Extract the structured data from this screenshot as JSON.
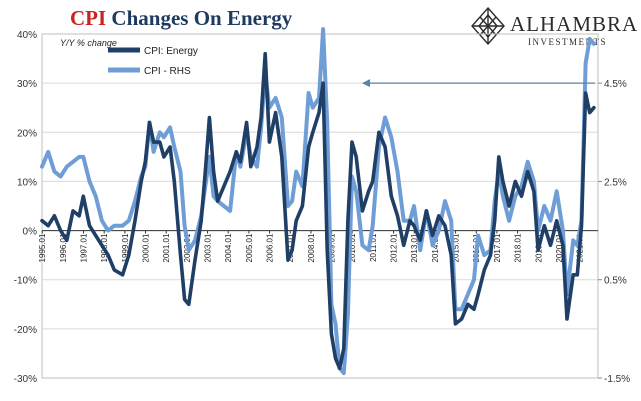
{
  "title": {
    "part1": "CPI",
    "part2": "Changes On Energy"
  },
  "logo": {
    "brand": "ALHAMBRA",
    "sub": "INVESTMENTS"
  },
  "chart_data": {
    "type": "line",
    "title": "CPI Changes On Energy",
    "left_axis_note": "Y/Y % change",
    "ylim_left": [
      -30,
      40
    ],
    "ylim_right": [
      -1.5,
      5.5
    ],
    "left_ticks": [
      "40%",
      "30%",
      "20%",
      "10%",
      "0%",
      "-10%",
      "-20%",
      "-30%"
    ],
    "right_ticks": [
      "4.5%",
      "2.5%",
      "0.5%",
      "-1.5%"
    ],
    "x_labels": [
      "1995.01",
      "1996.01",
      "1997.01",
      "1998.01",
      "1999.01",
      "2000.01",
      "2001.01",
      "2002.01",
      "2003.01",
      "2004.01",
      "2005.01",
      "2006.01",
      "2007.01",
      "2008.01",
      "2009.01",
      "2010.01",
      "2011.01",
      "2012.01",
      "2013.01",
      "2014.01",
      "2015.01",
      "2016.01",
      "2017.01",
      "2018.01",
      "2019.01",
      "2020.01",
      "2021.01"
    ],
    "grid": "horizontal",
    "legend_placement": "top-left",
    "annotation": "arrow pointing left at 4.5%",
    "series": [
      {
        "name": "CPI: Energy",
        "axis": "left",
        "color": "#1f3f66",
        "points": [
          [
            1995.0,
            2
          ],
          [
            1995.3,
            1
          ],
          [
            1995.6,
            3
          ],
          [
            1995.9,
            0
          ],
          [
            1996.2,
            -2
          ],
          [
            1996.5,
            4
          ],
          [
            1996.8,
            3
          ],
          [
            1997.0,
            7
          ],
          [
            1997.3,
            1
          ],
          [
            1997.6,
            -1
          ],
          [
            1997.9,
            -3
          ],
          [
            1998.2,
            -5
          ],
          [
            1998.5,
            -8
          ],
          [
            1998.9,
            -9
          ],
          [
            1999.2,
            -5
          ],
          [
            1999.5,
            2
          ],
          [
            1999.8,
            10
          ],
          [
            2000.0,
            14
          ],
          [
            2000.2,
            22
          ],
          [
            2000.4,
            18
          ],
          [
            2000.7,
            18
          ],
          [
            2000.9,
            15
          ],
          [
            2001.2,
            17
          ],
          [
            2001.4,
            10
          ],
          [
            2001.7,
            -5
          ],
          [
            2001.9,
            -14
          ],
          [
            2002.1,
            -15
          ],
          [
            2002.4,
            -6
          ],
          [
            2002.7,
            2
          ],
          [
            2002.9,
            12
          ],
          [
            2003.1,
            23
          ],
          [
            2003.3,
            12
          ],
          [
            2003.5,
            6
          ],
          [
            2003.8,
            9
          ],
          [
            2004.1,
            12
          ],
          [
            2004.4,
            16
          ],
          [
            2004.6,
            14
          ],
          [
            2004.9,
            22
          ],
          [
            2005.1,
            13
          ],
          [
            2005.4,
            17
          ],
          [
            2005.6,
            23
          ],
          [
            2005.8,
            36
          ],
          [
            2006.0,
            18
          ],
          [
            2006.3,
            24
          ],
          [
            2006.6,
            15
          ],
          [
            2006.9,
            -6
          ],
          [
            2007.1,
            -4
          ],
          [
            2007.3,
            2
          ],
          [
            2007.6,
            5
          ],
          [
            2007.9,
            17
          ],
          [
            2008.1,
            20
          ],
          [
            2008.4,
            24
          ],
          [
            2008.6,
            30
          ],
          [
            2008.8,
            -4
          ],
          [
            2009.0,
            -21
          ],
          [
            2009.2,
            -26
          ],
          [
            2009.4,
            -28
          ],
          [
            2009.6,
            -24
          ],
          [
            2009.8,
            2
          ],
          [
            2010.0,
            18
          ],
          [
            2010.2,
            15
          ],
          [
            2010.5,
            4
          ],
          [
            2010.8,
            8
          ],
          [
            2011.0,
            10
          ],
          [
            2011.3,
            20
          ],
          [
            2011.6,
            17
          ],
          [
            2011.9,
            7
          ],
          [
            2012.2,
            3
          ],
          [
            2012.5,
            -3
          ],
          [
            2012.8,
            2
          ],
          [
            2013.0,
            1
          ],
          [
            2013.3,
            -2
          ],
          [
            2013.6,
            4
          ],
          [
            2013.9,
            -1
          ],
          [
            2014.2,
            3
          ],
          [
            2014.5,
            1
          ],
          [
            2014.8,
            -5
          ],
          [
            2015.0,
            -19
          ],
          [
            2015.3,
            -18
          ],
          [
            2015.6,
            -15
          ],
          [
            2015.9,
            -16
          ],
          [
            2016.1,
            -13
          ],
          [
            2016.4,
            -8
          ],
          [
            2016.7,
            -5
          ],
          [
            2016.9,
            2
          ],
          [
            2017.1,
            15
          ],
          [
            2017.3,
            10
          ],
          [
            2017.6,
            5
          ],
          [
            2017.9,
            10
          ],
          [
            2018.2,
            7
          ],
          [
            2018.5,
            12
          ],
          [
            2018.8,
            8
          ],
          [
            2019.0,
            -4
          ],
          [
            2019.3,
            1
          ],
          [
            2019.6,
            -3
          ],
          [
            2019.9,
            2
          ],
          [
            2020.2,
            -3
          ],
          [
            2020.4,
            -18
          ],
          [
            2020.7,
            -9
          ],
          [
            2020.9,
            -9
          ],
          [
            2021.1,
            1
          ],
          [
            2021.3,
            28
          ],
          [
            2021.5,
            24
          ],
          [
            2021.7,
            25
          ]
        ]
      },
      {
        "name": "CPI - RHS",
        "axis": "right",
        "color": "#6f9ed6",
        "points": [
          [
            1995.0,
            2.8
          ],
          [
            1995.3,
            3.1
          ],
          [
            1995.6,
            2.7
          ],
          [
            1995.9,
            2.6
          ],
          [
            1996.2,
            2.8
          ],
          [
            1996.5,
            2.9
          ],
          [
            1996.8,
            3.0
          ],
          [
            1997.0,
            3.0
          ],
          [
            1997.3,
            2.5
          ],
          [
            1997.6,
            2.2
          ],
          [
            1997.9,
            1.7
          ],
          [
            1998.2,
            1.5
          ],
          [
            1998.5,
            1.6
          ],
          [
            1998.9,
            1.6
          ],
          [
            1999.2,
            1.7
          ],
          [
            1999.5,
            2.1
          ],
          [
            1999.8,
            2.6
          ],
          [
            2000.0,
            2.8
          ],
          [
            2000.2,
            3.7
          ],
          [
            2000.4,
            3.1
          ],
          [
            2000.7,
            3.5
          ],
          [
            2000.9,
            3.4
          ],
          [
            2001.2,
            3.6
          ],
          [
            2001.4,
            3.2
          ],
          [
            2001.7,
            2.7
          ],
          [
            2001.9,
            1.6
          ],
          [
            2002.1,
            1.1
          ],
          [
            2002.4,
            1.3
          ],
          [
            2002.7,
            1.8
          ],
          [
            2002.9,
            2.4
          ],
          [
            2003.1,
            3.0
          ],
          [
            2003.3,
            2.2
          ],
          [
            2003.5,
            2.1
          ],
          [
            2003.8,
            2.0
          ],
          [
            2004.1,
            1.9
          ],
          [
            2004.4,
            3.1
          ],
          [
            2004.6,
            2.8
          ],
          [
            2004.9,
            3.5
          ],
          [
            2005.1,
            3.0
          ],
          [
            2005.4,
            2.8
          ],
          [
            2005.6,
            3.6
          ],
          [
            2005.8,
            4.7
          ],
          [
            2006.0,
            4.0
          ],
          [
            2006.3,
            4.2
          ],
          [
            2006.6,
            3.8
          ],
          [
            2006.9,
            2.0
          ],
          [
            2007.1,
            2.1
          ],
          [
            2007.3,
            2.7
          ],
          [
            2007.6,
            2.4
          ],
          [
            2007.9,
            4.3
          ],
          [
            2008.1,
            4.0
          ],
          [
            2008.4,
            4.2
          ],
          [
            2008.6,
            5.6
          ],
          [
            2008.8,
            3.7
          ],
          [
            2009.0,
            0.0
          ],
          [
            2009.2,
            -0.4
          ],
          [
            2009.4,
            -1.3
          ],
          [
            2009.6,
            -1.4
          ],
          [
            2009.8,
            -0.2
          ],
          [
            2010.0,
            2.6
          ],
          [
            2010.2,
            2.3
          ],
          [
            2010.5,
            1.2
          ],
          [
            2010.8,
            1.1
          ],
          [
            2011.0,
            1.6
          ],
          [
            2011.3,
            3.2
          ],
          [
            2011.6,
            3.8
          ],
          [
            2011.9,
            3.4
          ],
          [
            2012.2,
            2.7
          ],
          [
            2012.5,
            1.7
          ],
          [
            2012.8,
            1.7
          ],
          [
            2013.0,
            2.0
          ],
          [
            2013.3,
            1.1
          ],
          [
            2013.6,
            1.9
          ],
          [
            2013.9,
            1.2
          ],
          [
            2014.2,
            1.5
          ],
          [
            2014.5,
            2.1
          ],
          [
            2014.8,
            1.7
          ],
          [
            2015.0,
            -0.1
          ],
          [
            2015.3,
            -0.1
          ],
          [
            2015.6,
            0.2
          ],
          [
            2015.9,
            0.5
          ],
          [
            2016.1,
            1.4
          ],
          [
            2016.4,
            1.0
          ],
          [
            2016.7,
            1.1
          ],
          [
            2016.9,
            2.1
          ],
          [
            2017.1,
            2.7
          ],
          [
            2017.3,
            2.2
          ],
          [
            2017.6,
            1.7
          ],
          [
            2017.9,
            2.2
          ],
          [
            2018.2,
            2.4
          ],
          [
            2018.5,
            2.9
          ],
          [
            2018.8,
            2.5
          ],
          [
            2019.0,
            1.5
          ],
          [
            2019.3,
            2.0
          ],
          [
            2019.6,
            1.7
          ],
          [
            2019.9,
            2.3
          ],
          [
            2020.2,
            1.5
          ],
          [
            2020.4,
            0.2
          ],
          [
            2020.7,
            1.3
          ],
          [
            2020.9,
            1.2
          ],
          [
            2021.1,
            1.7
          ],
          [
            2021.3,
            4.9
          ],
          [
            2021.5,
            5.4
          ],
          [
            2021.7,
            5.3
          ]
        ]
      }
    ]
  }
}
